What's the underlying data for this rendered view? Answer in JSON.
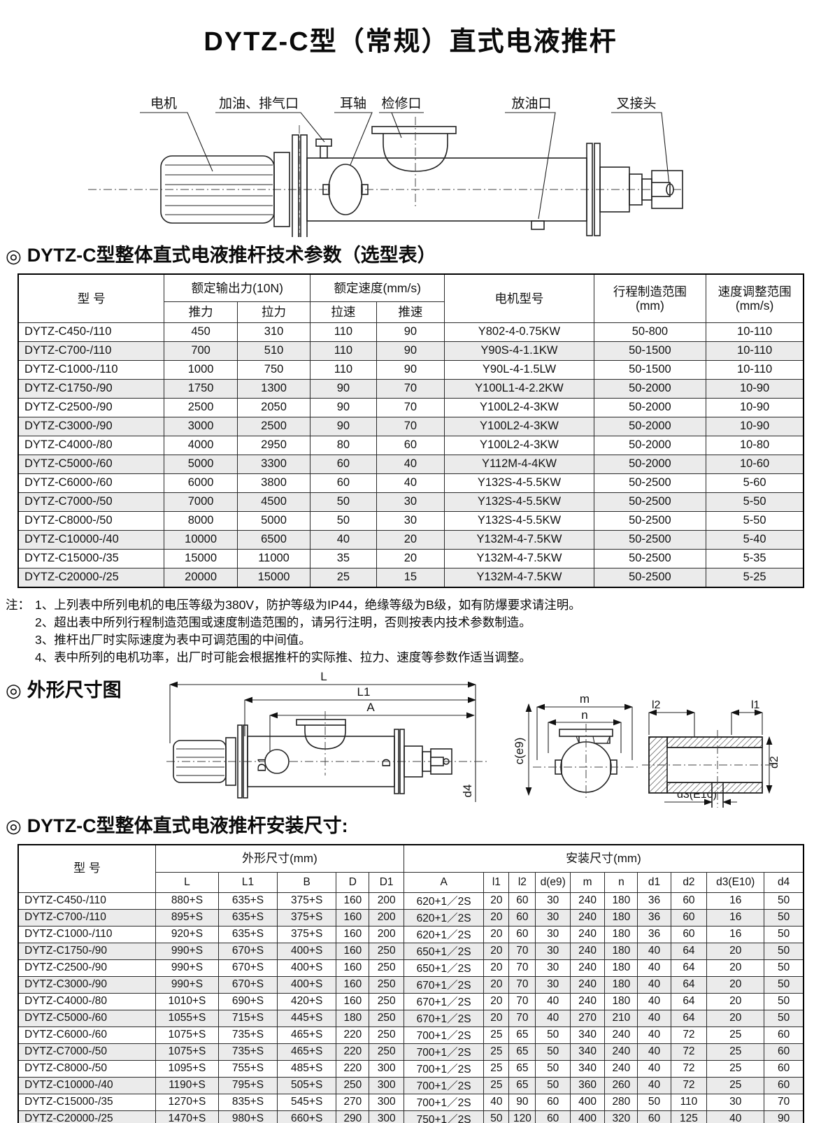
{
  "title": "DYTZ-C型（常规）直式电液推杆",
  "bullet": "◎",
  "device_diagram": {
    "labels": {
      "motor": "电机",
      "oil_fill_vent": "加油、排气口",
      "trunnion": "耳轴",
      "inspection_port": "检修口",
      "oil_drain": "放油口",
      "fork_joint": "叉接头"
    }
  },
  "tech_section": {
    "title": "DYTZ-C型整体直式电液推杆技术参数（选型表）"
  },
  "table1": {
    "headers": {
      "model": "型  号",
      "out_force": "额定输出力(10N)",
      "speed": "额定速度(mm/s)",
      "push": "推力",
      "pull": "拉力",
      "pull_speed": "拉速",
      "push_speed": "推速",
      "motor": "电机型号",
      "stroke1": "行程制造范围",
      "stroke2": "(mm)",
      "adj1": "速度调整范围",
      "adj2": "(mm/s)"
    },
    "rows": [
      [
        "DYTZ-C450-/110",
        "450",
        "310",
        "110",
        "90",
        "Y802-4-0.75KW",
        "50-800",
        "10-110"
      ],
      [
        "DYTZ-C700-/110",
        "700",
        "510",
        "110",
        "90",
        "Y90S-4-1.1KW",
        "50-1500",
        "10-110"
      ],
      [
        "DYTZ-C1000-/110",
        "1000",
        "750",
        "110",
        "90",
        "Y90L-4-1.5LW",
        "50-1500",
        "10-110"
      ],
      [
        "DYTZ-C1750-/90",
        "1750",
        "1300",
        "90",
        "70",
        "Y100L1-4-2.2KW",
        "50-2000",
        "10-90"
      ],
      [
        "DYTZ-C2500-/90",
        "2500",
        "2050",
        "90",
        "70",
        "Y100L2-4-3KW",
        "50-2000",
        "10-90"
      ],
      [
        "DYTZ-C3000-/90",
        "3000",
        "2500",
        "90",
        "70",
        "Y100L2-4-3KW",
        "50-2000",
        "10-90"
      ],
      [
        "DYTZ-C4000-/80",
        "4000",
        "2950",
        "80",
        "60",
        "Y100L2-4-3KW",
        "50-2000",
        "10-80"
      ],
      [
        "DYTZ-C5000-/60",
        "5000",
        "3300",
        "60",
        "40",
        "Y112M-4-4KW",
        "50-2000",
        "10-60"
      ],
      [
        "DYTZ-C6000-/60",
        "6000",
        "3800",
        "60",
        "40",
        "Y132S-4-5.5KW",
        "50-2500",
        "5-60"
      ],
      [
        "DYTZ-C7000-/50",
        "7000",
        "4500",
        "50",
        "30",
        "Y132S-4-5.5KW",
        "50-2500",
        "5-50"
      ],
      [
        "DYTZ-C8000-/50",
        "8000",
        "5000",
        "50",
        "30",
        "Y132S-4-5.5KW",
        "50-2500",
        "5-50"
      ],
      [
        "DYTZ-C10000-/40",
        "10000",
        "6500",
        "40",
        "20",
        "Y132M-4-7.5KW",
        "50-2500",
        "5-40"
      ],
      [
        "DYTZ-C15000-/35",
        "15000",
        "11000",
        "35",
        "20",
        "Y132M-4-7.5KW",
        "50-2500",
        "5-35"
      ],
      [
        "DYTZ-C20000-/25",
        "20000",
        "15000",
        "25",
        "15",
        "Y132M-4-7.5KW",
        "50-2500",
        "5-25"
      ]
    ]
  },
  "notes": {
    "label": "注：",
    "items": [
      "1、上列表中所列电机的电压等级为380V，防护等级为IP44，绝缘等级为B级，如有防爆要求请注明。",
      "2、超出表中所列行程制造范围或速度制造范围的，请另行注明，否则按表内技术参数制造。",
      "3、推杆出厂时实际速度为表中可调范围的中间值。",
      "4、表中所列的电机功率，出厂时可能会根据推杆的实际推、拉力、速度等参数作适当调整。"
    ]
  },
  "outline_section": {
    "title": "外形尺寸图"
  },
  "dim_labels": {
    "L": "L",
    "L1": "L1",
    "A": "A",
    "D": "D",
    "D1": "D1",
    "d4": "d4",
    "m": "m",
    "n": "n",
    "c_e9": "c(e9)",
    "l1": "l1",
    "l2": "l2",
    "d1": "d1",
    "d2": "d2",
    "d3_E10": "d3(E10)"
  },
  "install_section": {
    "title": "DYTZ-C型整体直式电液推杆安装尺寸:"
  },
  "table2": {
    "headers": {
      "model": "型  号",
      "outline": "外形尺寸(mm)",
      "install": "安装尺寸(mm)"
    },
    "subheaders": [
      "L",
      "L1",
      "B",
      "D",
      "D1",
      "A",
      "l1",
      "l2",
      "d(e9)",
      "m",
      "n",
      "d1",
      "d2",
      "d3(E10)",
      "d4"
    ],
    "rows": [
      [
        "DYTZ-C450-/110",
        "880+S",
        "635+S",
        "375+S",
        "160",
        "200",
        "620+1／2S",
        "20",
        "60",
        "30",
        "240",
        "180",
        "36",
        "60",
        "16",
        "50"
      ],
      [
        "DYTZ-C700-/110",
        "895+S",
        "635+S",
        "375+S",
        "160",
        "200",
        "620+1／2S",
        "20",
        "60",
        "30",
        "240",
        "180",
        "36",
        "60",
        "16",
        "50"
      ],
      [
        "DYTZ-C1000-/110",
        "920+S",
        "635+S",
        "375+S",
        "160",
        "200",
        "620+1／2S",
        "20",
        "60",
        "30",
        "240",
        "180",
        "36",
        "60",
        "16",
        "50"
      ],
      [
        "DYTZ-C1750-/90",
        "990+S",
        "670+S",
        "400+S",
        "160",
        "250",
        "650+1／2S",
        "20",
        "70",
        "30",
        "240",
        "180",
        "40",
        "64",
        "20",
        "50"
      ],
      [
        "DYTZ-C2500-/90",
        "990+S",
        "670+S",
        "400+S",
        "160",
        "250",
        "650+1／2S",
        "20",
        "70",
        "30",
        "240",
        "180",
        "40",
        "64",
        "20",
        "50"
      ],
      [
        "DYTZ-C3000-/90",
        "990+S",
        "670+S",
        "400+S",
        "160",
        "250",
        "670+1／2S",
        "20",
        "70",
        "30",
        "240",
        "180",
        "40",
        "64",
        "20",
        "50"
      ],
      [
        "DYTZ-C4000-/80",
        "1010+S",
        "690+S",
        "420+S",
        "160",
        "250",
        "670+1／2S",
        "20",
        "70",
        "40",
        "240",
        "180",
        "40",
        "64",
        "20",
        "50"
      ],
      [
        "DYTZ-C5000-/60",
        "1055+S",
        "715+S",
        "445+S",
        "180",
        "250",
        "670+1／2S",
        "20",
        "70",
        "40",
        "270",
        "210",
        "40",
        "64",
        "20",
        "50"
      ],
      [
        "DYTZ-C6000-/60",
        "1075+S",
        "735+S",
        "465+S",
        "220",
        "250",
        "700+1／2S",
        "25",
        "65",
        "50",
        "340",
        "240",
        "40",
        "72",
        "25",
        "60"
      ],
      [
        "DYTZ-C7000-/50",
        "1075+S",
        "735+S",
        "465+S",
        "220",
        "250",
        "700+1／2S",
        "25",
        "65",
        "50",
        "340",
        "240",
        "40",
        "72",
        "25",
        "60"
      ],
      [
        "DYTZ-C8000-/50",
        "1095+S",
        "755+S",
        "485+S",
        "220",
        "300",
        "700+1／2S",
        "25",
        "65",
        "50",
        "340",
        "240",
        "40",
        "72",
        "25",
        "60"
      ],
      [
        "DYTZ-C10000-/40",
        "1190+S",
        "795+S",
        "505+S",
        "250",
        "300",
        "700+1／2S",
        "25",
        "65",
        "50",
        "360",
        "260",
        "40",
        "72",
        "25",
        "60"
      ],
      [
        "DYTZ-C15000-/35",
        "1270+S",
        "835+S",
        "545+S",
        "270",
        "300",
        "700+1／2S",
        "40",
        "90",
        "60",
        "400",
        "280",
        "50",
        "110",
        "30",
        "70"
      ],
      [
        "DYTZ-C20000-/25",
        "1470+S",
        "980+S",
        "660+S",
        "290",
        "300",
        "750+1／2S",
        "50",
        "120",
        "60",
        "400",
        "320",
        "60",
        "125",
        "40",
        "90"
      ]
    ]
  }
}
